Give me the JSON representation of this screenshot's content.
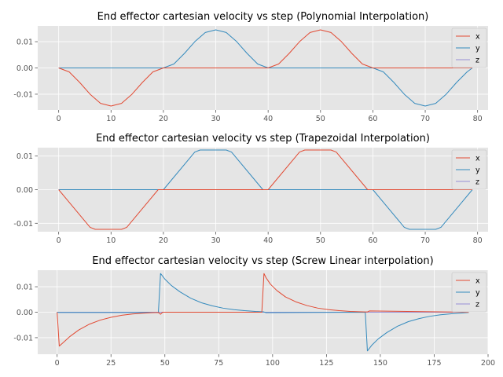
{
  "chart_data": [
    {
      "type": "line",
      "title": "End effector cartesian velocity vs step (Polynomial Interpolation)",
      "xlabel": "",
      "ylabel": "",
      "xlim": [
        -4,
        82
      ],
      "ylim": [
        -0.016,
        0.016
      ],
      "xticks": [
        0,
        10,
        20,
        30,
        40,
        50,
        60,
        70,
        80
      ],
      "yticks": [
        -0.01,
        0.0,
        0.01
      ],
      "ytick_labels": [
        "-0.01",
        "0.00",
        "0.01"
      ],
      "grid": true,
      "legend_position": "top-right",
      "series": [
        {
          "name": "x",
          "color": "#E24A33",
          "x": [
            0,
            2,
            4,
            6,
            8,
            10,
            12,
            14,
            16,
            18,
            20,
            40,
            42,
            44,
            46,
            48,
            50,
            52,
            54,
            56,
            58,
            60,
            79
          ],
          "y": [
            0,
            -0.0015,
            -0.0055,
            -0.01,
            -0.0135,
            -0.0145,
            -0.0135,
            -0.01,
            -0.0055,
            -0.0015,
            0,
            0,
            0.0015,
            0.0055,
            0.01,
            0.0135,
            0.0145,
            0.0135,
            0.01,
            0.0055,
            0.0015,
            0,
            0
          ]
        },
        {
          "name": "y",
          "color": "#348ABD",
          "x": [
            0,
            20,
            22,
            24,
            26,
            28,
            30,
            32,
            34,
            36,
            38,
            40,
            60,
            62,
            64,
            66,
            68,
            70,
            72,
            74,
            76,
            78,
            79
          ],
          "y": [
            0,
            0,
            0.0015,
            0.0055,
            0.01,
            0.0135,
            0.0145,
            0.0135,
            0.01,
            0.0055,
            0.0015,
            0,
            0,
            -0.0015,
            -0.0055,
            -0.01,
            -0.0135,
            -0.0145,
            -0.0135,
            -0.01,
            -0.0055,
            -0.0015,
            0
          ]
        },
        {
          "name": "z",
          "color": "#988ED5",
          "x": [
            0,
            79
          ],
          "y": [
            0,
            0
          ]
        }
      ]
    },
    {
      "type": "line",
      "title": "End effector cartesian velocity vs step (Trapezoidal Interpolation)",
      "xlabel": "",
      "ylabel": "",
      "xlim": [
        -4,
        82
      ],
      "ylim": [
        -0.0125,
        0.0125
      ],
      "xticks": [
        0,
        10,
        20,
        30,
        40,
        50,
        60,
        70,
        80
      ],
      "yticks": [
        -0.01,
        0.0,
        0.01
      ],
      "ytick_labels": [
        "-0.01",
        "0.00",
        "0.01"
      ],
      "grid": true,
      "legend_position": "top-right",
      "series": [
        {
          "name": "x",
          "color": "#E24A33",
          "x": [
            0,
            6,
            7,
            12,
            13,
            19,
            20,
            40,
            46,
            47,
            52,
            53,
            59,
            60,
            79
          ],
          "y": [
            0,
            -0.0112,
            -0.0118,
            -0.0118,
            -0.0112,
            0,
            0,
            0,
            0.0112,
            0.0118,
            0.0118,
            0.0112,
            0,
            0,
            0
          ]
        },
        {
          "name": "y",
          "color": "#348ABD",
          "x": [
            0,
            20,
            26,
            27,
            32,
            33,
            39,
            40,
            60,
            66,
            67,
            72,
            73,
            79
          ],
          "y": [
            0,
            0,
            0.0112,
            0.0118,
            0.0118,
            0.0112,
            0,
            0,
            0,
            -0.0112,
            -0.0118,
            -0.0118,
            -0.0112,
            0
          ]
        },
        {
          "name": "z",
          "color": "#988ED5",
          "x": [
            0,
            79
          ],
          "y": [
            0,
            0
          ]
        }
      ]
    },
    {
      "type": "line",
      "title": "End effector cartesian velocity vs step (Screw Linear interpolation)",
      "xlabel": "",
      "ylabel": "",
      "xlim": [
        -9,
        200
      ],
      "ylim": [
        -0.0165,
        0.0165
      ],
      "xticks": [
        0,
        25,
        50,
        75,
        100,
        125,
        150,
        175,
        200
      ],
      "yticks": [
        -0.01,
        0.0,
        0.01
      ],
      "ytick_labels": [
        "-0.01",
        "0.00",
        "0.01"
      ],
      "grid": true,
      "legend_position": "top-right",
      "series": [
        {
          "name": "x",
          "color": "#E24A33",
          "x": [
            0,
            1,
            3,
            6,
            10,
            15,
            20,
            25,
            30,
            35,
            40,
            44,
            47,
            48,
            49,
            52,
            95,
            96,
            97,
            99,
            102,
            106,
            111,
            116,
            121,
            126,
            131,
            136,
            140,
            143,
            144,
            145,
            191
          ],
          "y": [
            0,
            -0.0133,
            -0.0118,
            -0.0095,
            -0.007,
            -0.0047,
            -0.0031,
            -0.002,
            -0.0012,
            -0.0007,
            -0.0004,
            -0.0002,
            -0.0001,
            -0.0008,
            0,
            0,
            0,
            0.0152,
            0.0135,
            0.011,
            0.0085,
            0.006,
            0.004,
            0.0026,
            0.0016,
            0.001,
            0.0006,
            0.0003,
            0.0002,
            0.0001,
            0.0001,
            0.0005,
            0
          ]
        },
        {
          "name": "y",
          "color": "#348ABD",
          "x": [
            0,
            1,
            47,
            48,
            50,
            53,
            57,
            62,
            67,
            72,
            77,
            82,
            87,
            92,
            95,
            96,
            97,
            143,
            144,
            146,
            149,
            153,
            158,
            163,
            168,
            173,
            178,
            183,
            188,
            191
          ],
          "y": [
            0,
            -0.0001,
            -0.0001,
            0.0152,
            0.013,
            0.0105,
            0.008,
            0.0055,
            0.0037,
            0.0025,
            0.0016,
            0.001,
            0.0006,
            0.0003,
            0.0002,
            0.0001,
            -0.0002,
            0,
            -0.0152,
            -0.013,
            -0.0105,
            -0.008,
            -0.0055,
            -0.0037,
            -0.0025,
            -0.0016,
            -0.001,
            -0.0006,
            -0.0003,
            -0.0001
          ]
        },
        {
          "name": "z",
          "color": "#988ED5",
          "x": [
            0,
            191
          ],
          "y": [
            0,
            0
          ]
        }
      ]
    }
  ]
}
